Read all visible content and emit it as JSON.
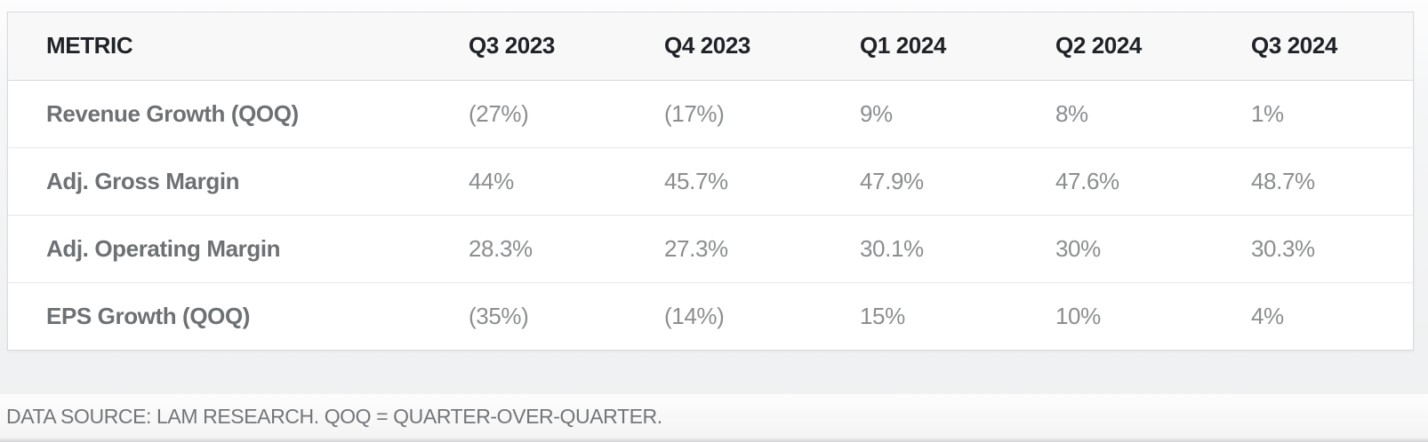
{
  "chart_data": {
    "type": "table",
    "columns": [
      "METRIC",
      "Q3 2023",
      "Q4 2023",
      "Q1 2024",
      "Q2 2024",
      "Q3 2024"
    ],
    "rows": [
      {
        "label": "Revenue Growth (QOQ)",
        "values": [
          "(27%)",
          "(17%)",
          "9%",
          "8%",
          "1%"
        ]
      },
      {
        "label": "Adj. Gross Margin",
        "values": [
          "44%",
          "45.7%",
          "47.9%",
          "47.6%",
          "48.7%"
        ]
      },
      {
        "label": "Adj. Operating Margin",
        "values": [
          "28.3%",
          "27.3%",
          "30.1%",
          "30%",
          "30.3%"
        ]
      },
      {
        "label": "EPS Growth (QOQ)",
        "values": [
          "(35%)",
          "(14%)",
          "15%",
          "10%",
          "4%"
        ]
      }
    ],
    "source_note": "DATA SOURCE: LAM RESEARCH. QOQ = QUARTER-OVER-QUARTER."
  },
  "colors": {
    "header_text": "#1f2226",
    "header_background": "#f8f8f9",
    "row_label_text": "#6e7174",
    "value_text": "#8b8e90",
    "border_outer": "#d9dadc",
    "border_row": "#e7e8e9",
    "footer_text": "#737679",
    "card_background": "#ffffff"
  }
}
